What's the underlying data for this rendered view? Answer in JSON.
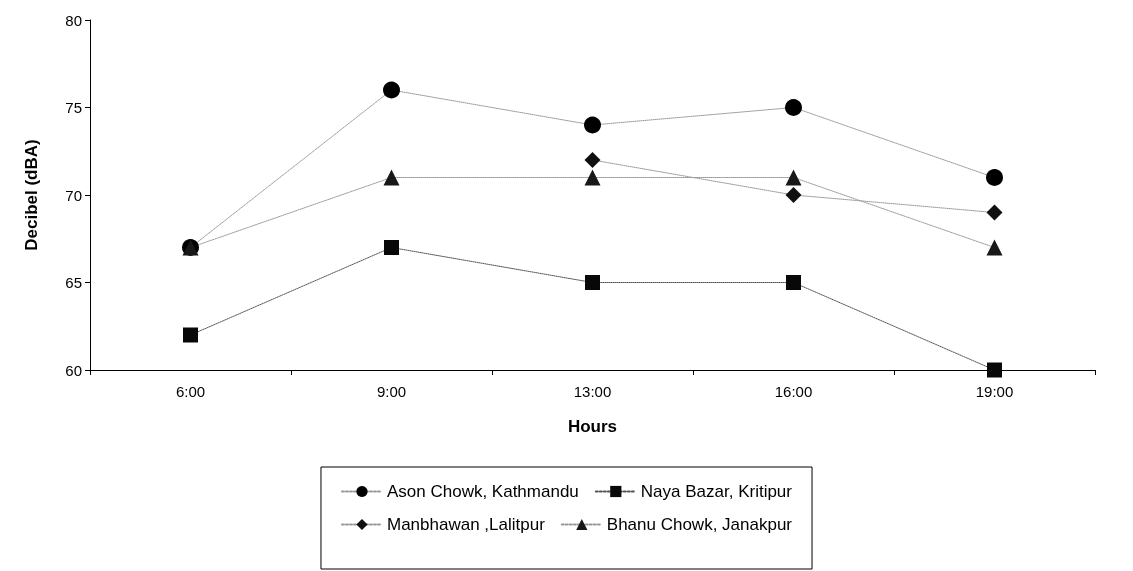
{
  "chart_data": {
    "type": "line",
    "xlabel": "Hours",
    "ylabel": "Decibel (dBA)",
    "categories": [
      "6:00",
      "9:00",
      "13:00",
      "16:00",
      "19:00"
    ],
    "series": [
      {
        "name": "Ason Chowk, Kathmandu",
        "color": "#000000",
        "marker": "circle",
        "values": [
          67,
          76,
          74,
          75,
          71
        ]
      },
      {
        "name": "Naya Bazar, Kritipur",
        "color": "#080808",
        "marker": "square",
        "values": [
          62,
          67,
          65,
          65,
          60
        ]
      },
      {
        "name": "Manbhawan ,Lalitpur",
        "color": "#101010",
        "marker": "diamond",
        "values": [
          null,
          null,
          72,
          70,
          69
        ]
      },
      {
        "name": "Bhanu Chowk, Janakpur",
        "color": "#181818",
        "marker": "triangle",
        "values": [
          67,
          71,
          71,
          71,
          67
        ]
      }
    ],
    "ylim": [
      60,
      80
    ],
    "yticks": [
      60,
      65,
      70,
      75,
      80
    ],
    "grid": false,
    "legend": "bottom",
    "line_style": "dotted"
  }
}
